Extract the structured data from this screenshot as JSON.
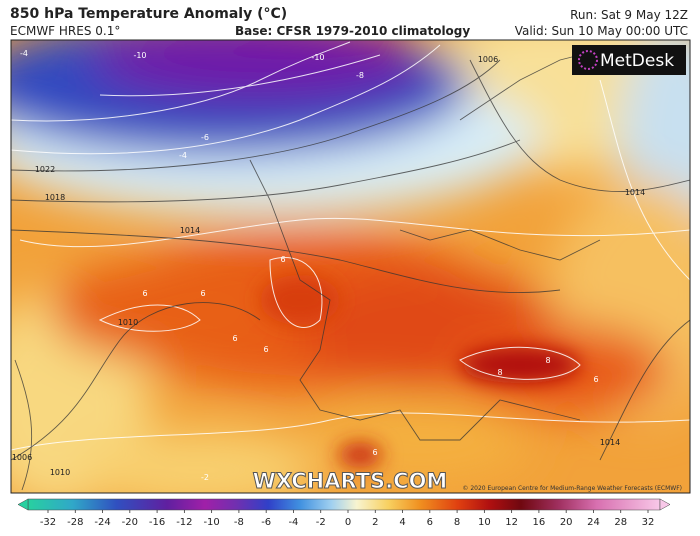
{
  "header": {
    "title": "850 hPa Temperature Anomaly (°C)",
    "model": "ECMWF HRES 0.1°",
    "base": "Base: CFSR 1979-2010 climatology",
    "run": "Run: Sat 9 May 12Z",
    "valid": "Valid: Sun 10 May 00:00 UTC"
  },
  "map": {
    "logo": "MetDesk",
    "watermark": "WXCHARTS.COM",
    "copyright": "© 2020 European Centre for Medium-Range Weather Forecasts (ECMWF)",
    "labels": [
      "-4",
      "-10",
      "-10",
      "-8",
      "-6",
      "-4",
      "1022",
      "1018",
      "1014",
      "1006",
      "6",
      "6",
      "6",
      "6",
      "6",
      "8",
      "8",
      "6",
      "1010",
      "1006",
      "1010",
      "1014",
      "1014",
      "-2",
      "6"
    ]
  },
  "colorbar": {
    "ticks": [
      -32,
      -28,
      -24,
      -20,
      -16,
      -12,
      -10,
      -8,
      -6,
      -4,
      -2,
      0,
      2,
      4,
      6,
      8,
      10,
      12,
      16,
      20,
      24,
      28,
      32
    ]
  }
}
